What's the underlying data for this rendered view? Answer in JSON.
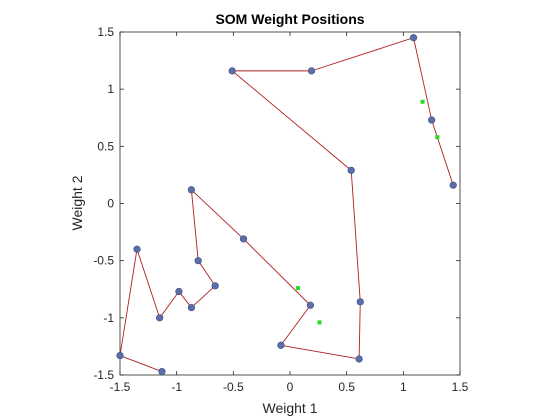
{
  "chart_data": {
    "type": "scatter",
    "title": "SOM Weight Positions",
    "xlabel": "Weight 1",
    "ylabel": "Weight 2",
    "xlim": [
      -1.5,
      1.5
    ],
    "ylim": [
      -1.5,
      1.5
    ],
    "xticks": [
      "-1.5",
      "-1",
      "-0.5",
      "0",
      "0.5",
      "1",
      "1.5"
    ],
    "yticks": [
      "1.5",
      "1",
      "0.5",
      "0",
      "-0.5",
      "-1",
      "-1.5"
    ],
    "grid": false,
    "legend": "none",
    "series": [
      {
        "role": "neuron-path",
        "color": "#b02020",
        "marker_color": "#5b6ea8",
        "x": [
          1.44,
          1.25,
          1.09,
          0.19,
          -0.51,
          0.54,
          0.62,
          0.61,
          -0.08,
          0.18,
          -0.41,
          -0.87,
          -0.81,
          -0.66,
          -0.87,
          -0.98,
          -1.15,
          -1.35,
          -1.5,
          -1.13
        ],
        "y": [
          0.16,
          0.73,
          1.45,
          1.16,
          1.16,
          0.29,
          -0.86,
          -1.36,
          -1.24,
          -0.89,
          -0.31,
          0.12,
          -0.5,
          -0.72,
          -0.91,
          -0.77,
          -1.0,
          -0.4,
          -1.33,
          -1.47
        ]
      },
      {
        "role": "input-points",
        "color": "#22dd22",
        "x": [
          1.17,
          1.3,
          0.07,
          0.26
        ],
        "y": [
          0.89,
          0.58,
          -0.74,
          -1.04
        ]
      }
    ]
  }
}
